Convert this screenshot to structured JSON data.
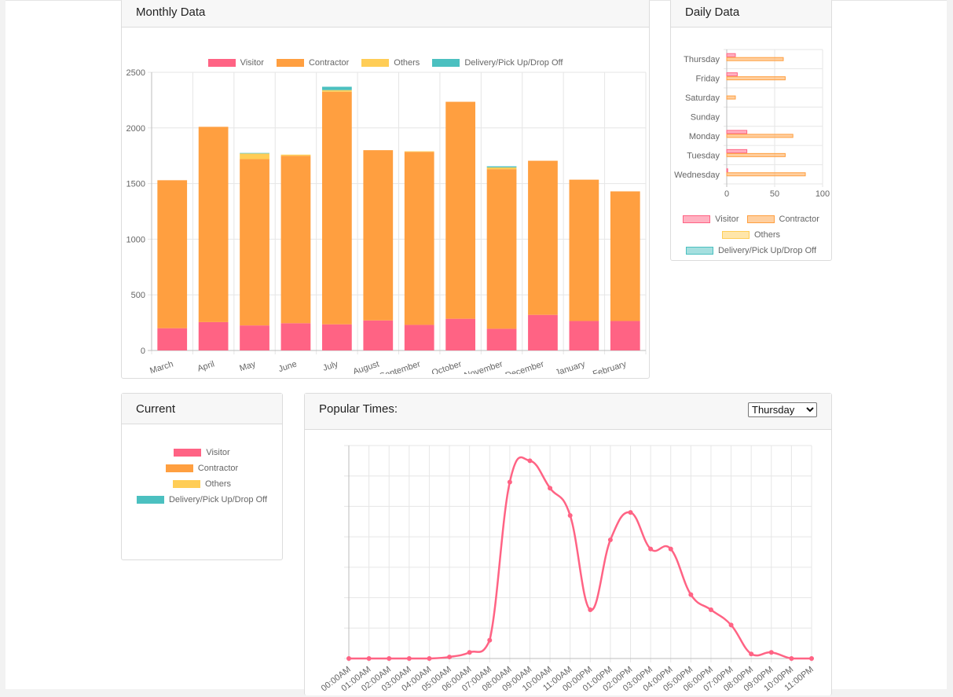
{
  "colors": {
    "visitor": "#ff6384",
    "contractor": "#ff9f40",
    "others": "#ffcd56",
    "delivery": "#4bc0c0"
  },
  "monthly": {
    "title": "Monthly Data",
    "legend": [
      "Visitor",
      "Contractor",
      "Others",
      "Delivery/Pick Up/Drop Off"
    ]
  },
  "daily": {
    "title": "Daily Data",
    "legend": [
      "Visitor",
      "Contractor",
      "Others",
      "Delivery/Pick Up/Drop Off"
    ]
  },
  "current": {
    "title": "Current",
    "legend": [
      "Visitor",
      "Contractor",
      "Others",
      "Delivery/Pick Up/Drop Off"
    ]
  },
  "popular": {
    "title": "Popular Times:",
    "day_options": [
      "Thursday"
    ],
    "selected_day": "Thursday"
  },
  "chart_data": [
    {
      "type": "bar",
      "stacked": true,
      "categories": [
        "March",
        "April",
        "May",
        "June",
        "July",
        "August",
        "September",
        "October",
        "November",
        "December",
        "January",
        "February"
      ],
      "series": [
        {
          "name": "Visitor",
          "values": [
            200,
            255,
            225,
            245,
            235,
            270,
            230,
            285,
            195,
            320,
            265,
            265
          ]
        },
        {
          "name": "Contractor",
          "values": [
            1330,
            1755,
            1495,
            1505,
            2090,
            1530,
            1555,
            1950,
            1435,
            1385,
            1270,
            1165
          ]
        },
        {
          "name": "Others",
          "values": [
            0,
            0,
            50,
            10,
            15,
            0,
            5,
            0,
            15,
            0,
            0,
            0
          ]
        },
        {
          "name": "Delivery/Pick Up/Drop Off",
          "values": [
            0,
            0,
            5,
            0,
            30,
            0,
            0,
            0,
            10,
            0,
            0,
            0
          ]
        }
      ],
      "ylim": [
        0,
        2500
      ],
      "yticks": [
        0,
        500,
        1000,
        1500,
        2000,
        2500
      ],
      "grid": true,
      "legend": "top"
    },
    {
      "type": "bar",
      "orientation": "horizontal",
      "categories": [
        "Thursday",
        "Friday",
        "Saturday",
        "Sunday",
        "Monday",
        "Tuesday",
        "Wednesday"
      ],
      "series": [
        {
          "name": "Visitor",
          "values": [
            9,
            11,
            0,
            0,
            21,
            21,
            1
          ]
        },
        {
          "name": "Contractor",
          "values": [
            59,
            61,
            9,
            0,
            69,
            61,
            82
          ]
        },
        {
          "name": "Others",
          "values": [
            0,
            0,
            0,
            0,
            0,
            0,
            0
          ]
        },
        {
          "name": "Delivery/Pick Up/Drop Off",
          "values": [
            0,
            0,
            0,
            0,
            0,
            0,
            0
          ]
        }
      ],
      "xlim": [
        0,
        100
      ],
      "xticks": [
        0,
        50,
        100
      ],
      "grid": true,
      "legend": "bottom"
    },
    {
      "type": "line",
      "x": [
        "00:00AM",
        "01:00AM",
        "02:00AM",
        "03:00AM",
        "04:00AM",
        "05:00AM",
        "06:00AM",
        "07:00AM",
        "08:00AM",
        "09:00AM",
        "10:00AM",
        "11:00AM",
        "00:00PM",
        "01:00PM",
        "02:00PM",
        "03:00PM",
        "04:00PM",
        "05:00PM",
        "06:00PM",
        "07:00PM",
        "08:00PM",
        "09:00PM",
        "10:00PM",
        "11:00PM"
      ],
      "series": [
        {
          "name": "Thursday",
          "values": [
            0,
            0,
            0,
            0,
            0,
            0.5,
            2,
            6,
            58,
            65,
            56,
            47,
            16,
            39,
            48,
            36,
            36,
            21,
            16,
            11,
            1.5,
            2,
            0,
            0
          ]
        }
      ],
      "ylim": [
        0,
        70
      ],
      "grid": true
    }
  ]
}
